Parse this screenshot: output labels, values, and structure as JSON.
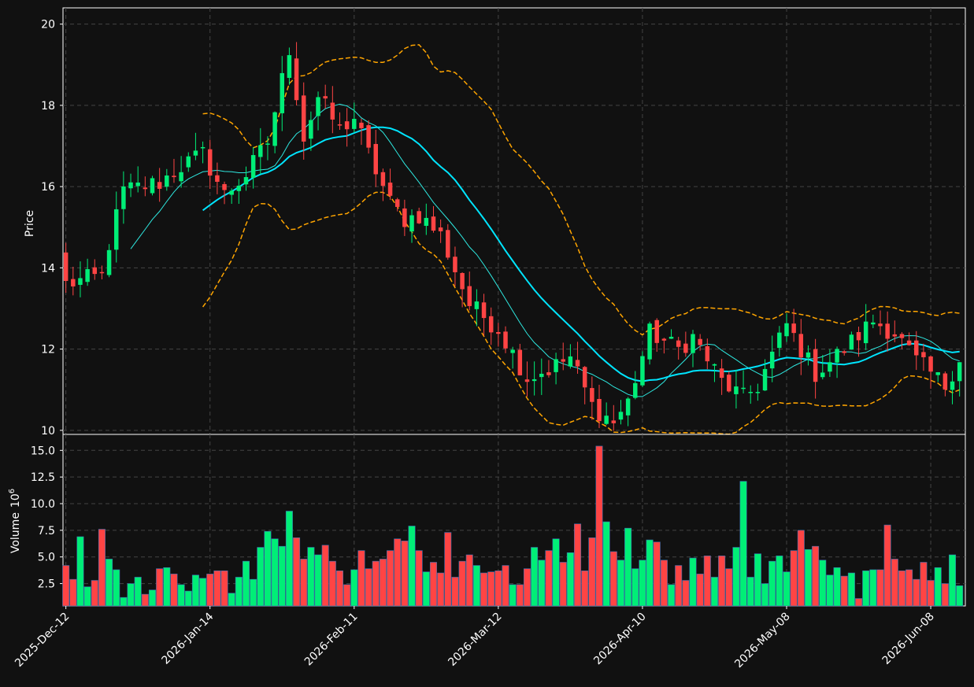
{
  "chart_data": {
    "type": "candlestick",
    "colors": {
      "background": "#111111",
      "up": "#00ee77",
      "down": "#ff4444",
      "ma_fast": "#2ee8e0",
      "ma_slow": "#00e5ff",
      "bands": "#ffa500",
      "grid": "#444444",
      "axis": "#ffffff"
    },
    "price_panel": {
      "ylabel": "Price",
      "ylim": [
        9.9,
        20.4
      ],
      "yticks": [
        "10",
        "12",
        "14",
        "16",
        "18",
        "20"
      ],
      "grid": true
    },
    "volume_panel": {
      "ylabel": "Volume",
      "ylabel_exponent": "6",
      "ylim": [
        0.4,
        16.5
      ],
      "yticks": [
        "2.5",
        "5.0",
        "7.5",
        "10.0",
        "12.5",
        "15.0"
      ],
      "grid": true
    },
    "x_ticks": [
      {
        "index": 0,
        "label": "2025-Dec-12"
      },
      {
        "index": 20,
        "label": "2026-Jan-14"
      },
      {
        "index": 40,
        "label": "2026-Feb-11"
      },
      {
        "index": 60,
        "label": "2026-Mar-12"
      },
      {
        "index": 80,
        "label": "2026-Apr-10"
      },
      {
        "index": 100,
        "label": "2026-May-08"
      },
      {
        "index": 120,
        "label": "2026-Jun-08"
      }
    ],
    "close_anchors": [
      [
        0,
        13.6
      ],
      [
        5,
        13.8
      ],
      [
        6,
        14.6
      ],
      [
        8,
        15.9
      ],
      [
        13,
        16.1
      ],
      [
        16,
        16.5
      ],
      [
        19,
        16.8
      ],
      [
        22,
        15.8
      ],
      [
        25,
        16.3
      ],
      [
        28,
        17.1
      ],
      [
        31,
        19.4
      ],
      [
        33,
        17.2
      ],
      [
        35,
        18.2
      ],
      [
        38,
        17.4
      ],
      [
        40,
        17.7
      ],
      [
        42,
        16.8
      ],
      [
        45,
        15.6
      ],
      [
        47,
        15.2
      ],
      [
        49,
        15.3
      ],
      [
        52,
        14.8
      ],
      [
        56,
        13.1
      ],
      [
        60,
        12.5
      ],
      [
        64,
        11.3
      ],
      [
        67,
        11.5
      ],
      [
        70,
        11.8
      ],
      [
        73,
        10.6
      ],
      [
        76,
        10.2
      ],
      [
        78,
        10.7
      ],
      [
        81,
        12.4
      ],
      [
        85,
        12.0
      ],
      [
        87,
        12.3
      ],
      [
        91,
        11.2
      ],
      [
        94,
        10.8
      ],
      [
        96,
        11.1
      ],
      [
        100,
        12.6
      ],
      [
        104,
        11.4
      ],
      [
        108,
        12.0
      ],
      [
        112,
        12.7
      ],
      [
        115,
        12.4
      ],
      [
        118,
        11.7
      ],
      [
        122,
        11.1
      ],
      [
        124,
        11.8
      ]
    ],
    "volume_millions": [
      4.2,
      2.9,
      6.9,
      2.2,
      2.8,
      7.6,
      4.8,
      3.8,
      1.2,
      2.5,
      3.1,
      1.5,
      1.9,
      3.9,
      4.0,
      3.4,
      2.4,
      1.8,
      3.3,
      3.0,
      3.4,
      3.7,
      3.7,
      1.6,
      3.1,
      4.6,
      2.9,
      5.9,
      7.4,
      6.7,
      6.0,
      9.3,
      6.8,
      4.8,
      5.9,
      5.2,
      6.1,
      4.6,
      3.7,
      2.4,
      3.8,
      5.6,
      3.9,
      4.6,
      4.8,
      5.6,
      6.7,
      6.5,
      7.9,
      5.6,
      3.6,
      4.5,
      3.5,
      7.3,
      3.1,
      4.6,
      5.2,
      4.2,
      3.5,
      3.6,
      3.7,
      4.2,
      2.4,
      2.4,
      3.9,
      5.9,
      4.7,
      5.6,
      6.7,
      4.5,
      5.4,
      8.1,
      3.7,
      6.8,
      15.4,
      8.3,
      5.5,
      4.7,
      7.7,
      3.9,
      4.7,
      6.6,
      6.4,
      4.7,
      2.4,
      4.2,
      2.8,
      4.9,
      3.4,
      5.1,
      3.1,
      5.1,
      3.9,
      5.9,
      12.1,
      3.1,
      5.3,
      2.5,
      4.6,
      5.1,
      3.6,
      5.6,
      7.5,
      5.7,
      6.0,
      4.7,
      3.3,
      4.0,
      3.2,
      3.5,
      1.1,
      3.7,
      3.8,
      3.8,
      8.0,
      4.8,
      3.7,
      3.8,
      2.9,
      4.5,
      2.8,
      4.0,
      2.5,
      5.2,
      2.3
    ],
    "moving_averages": [
      {
        "window": 10,
        "style": "thin"
      },
      {
        "window": 20,
        "style": "thick"
      }
    ],
    "bollinger": {
      "window": 20,
      "std": 2,
      "style": "dashed"
    }
  }
}
